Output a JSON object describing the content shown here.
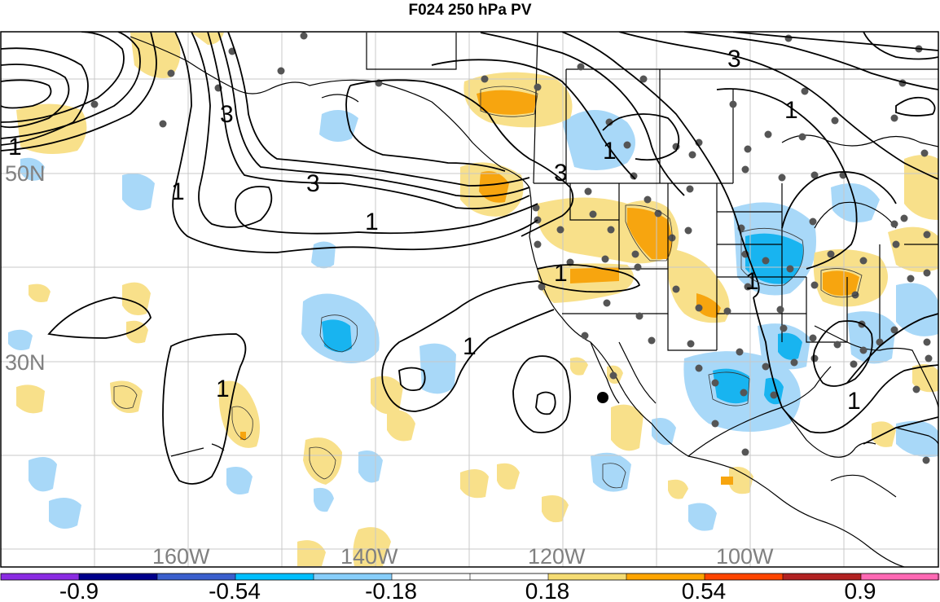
{
  "title": "F024 250 hPa PV",
  "map": {
    "longitude_labels": [
      "160W",
      "140W",
      "120W",
      "100W"
    ],
    "latitude_labels": [
      "50N",
      "30N"
    ],
    "contour_labels": [
      "1",
      "3",
      "3",
      "1",
      "1",
      "3",
      "1",
      "1",
      "1",
      "1",
      "3",
      "1",
      "1",
      "1"
    ]
  },
  "colorbar": {
    "tick_labels": [
      "-0.9",
      "-0.54",
      "-0.18",
      "0.18",
      "0.54",
      "0.9"
    ],
    "colors": [
      "#8a2be2",
      "#00008b",
      "#3a5fcd",
      "#00bfff",
      "#87cefa",
      "#ffffff",
      "#ffffff",
      "#f5dc73",
      "#ffa500",
      "#ff4500",
      "#b22222",
      "#ff69b4"
    ]
  },
  "colors": {
    "negative_light": "#a8d8f8",
    "negative_mid": "#18b4f0",
    "positive_light": "#f8e08a",
    "positive_mid": "#f7a50f",
    "contour": "#000000",
    "grid": "#c8c8c8",
    "stations": "#555555"
  }
}
